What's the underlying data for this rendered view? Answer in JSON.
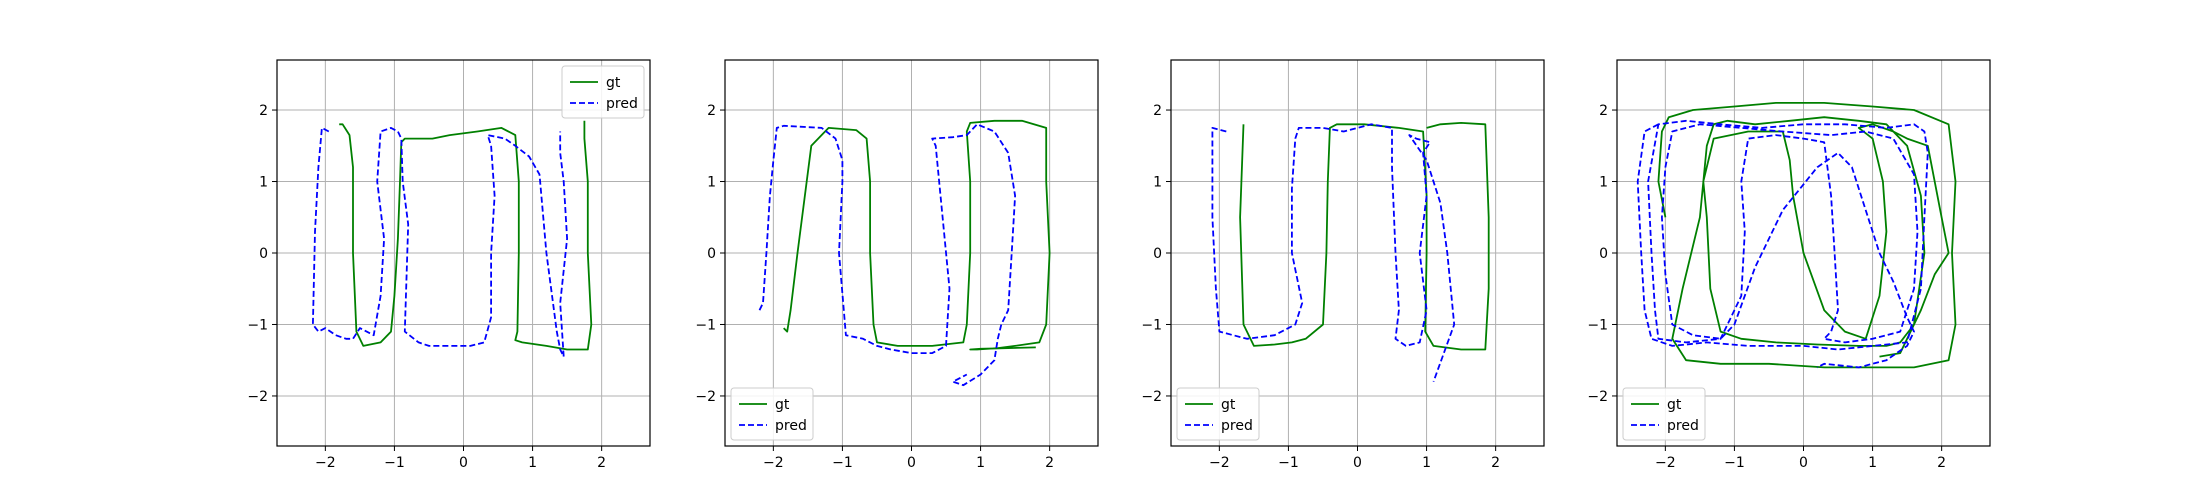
{
  "chart_data": [
    {
      "type": "line",
      "title": "",
      "xlabel": "",
      "ylabel": "",
      "xlim": [
        -2.7,
        2.7
      ],
      "ylim": [
        -2.7,
        2.7
      ],
      "xticks": [
        "−2",
        "−1",
        "0",
        "1",
        "2"
      ],
      "yticks": [
        "−2",
        "−1",
        "0",
        "1",
        "2"
      ],
      "grid": true,
      "legend_position": "upper right",
      "series": [
        {
          "name": "gt",
          "style": "solid",
          "color": "#008000",
          "x": [
            -1.8,
            -1.75,
            -1.65,
            -1.6,
            -1.6,
            -1.55,
            -1.45,
            -1.2,
            -1.05,
            -1.0,
            -0.95,
            -0.92,
            -0.9,
            -0.85,
            -0.75,
            -0.45,
            -0.2,
            0.2,
            0.55,
            0.75,
            0.8,
            0.8,
            0.78,
            0.75,
            0.85,
            1.2,
            1.5,
            1.8,
            1.85,
            1.8,
            1.8,
            1.75,
            1.75
          ],
          "y": [
            1.8,
            1.8,
            1.65,
            1.2,
            0.0,
            -1.1,
            -1.3,
            -1.25,
            -1.1,
            -0.6,
            0.2,
            1.0,
            1.55,
            1.6,
            1.6,
            1.6,
            1.65,
            1.7,
            1.75,
            1.65,
            1.0,
            0.0,
            -1.1,
            -1.22,
            -1.25,
            -1.3,
            -1.35,
            -1.35,
            -1.0,
            0.0,
            1.0,
            1.6,
            1.85
          ]
        },
        {
          "name": "pred",
          "style": "dashed",
          "color": "#0000ff",
          "x": [
            -1.95,
            -2.05,
            -2.1,
            -2.15,
            -2.18,
            -2.1,
            -2.0,
            -1.85,
            -1.7,
            -1.6,
            -1.5,
            -1.3,
            -1.2,
            -1.15,
            -1.25,
            -1.2,
            -1.05,
            -0.95,
            -0.9,
            -0.88,
            -0.8,
            -0.85,
            -0.65,
            -0.5,
            -0.2,
            0.1,
            0.3,
            0.4,
            0.4,
            0.45,
            0.4,
            0.35,
            0.6,
            0.75,
            0.95,
            1.1,
            1.2,
            1.35,
            1.4,
            1.45,
            1.4,
            1.5,
            1.45,
            1.4,
            1.4
          ],
          "y": [
            1.7,
            1.75,
            1.2,
            0.3,
            -1.0,
            -1.1,
            -1.05,
            -1.15,
            -1.2,
            -1.2,
            -1.05,
            -1.15,
            -0.6,
            0.2,
            1.0,
            1.7,
            1.75,
            1.7,
            1.6,
            1.0,
            0.4,
            -1.1,
            -1.25,
            -1.3,
            -1.3,
            -1.3,
            -1.25,
            -0.9,
            0.0,
            0.8,
            1.5,
            1.65,
            1.6,
            1.5,
            1.35,
            1.1,
            0.0,
            -1.1,
            -1.35,
            -1.45,
            -0.7,
            0.2,
            1.0,
            1.4,
            1.7
          ]
        }
      ]
    },
    {
      "type": "line",
      "title": "",
      "xlabel": "",
      "ylabel": "",
      "xlim": [
        -2.7,
        2.7
      ],
      "ylim": [
        -2.7,
        2.7
      ],
      "xticks": [
        "−2",
        "−1",
        "0",
        "1",
        "2"
      ],
      "yticks": [
        "−2",
        "−1",
        "0",
        "1",
        "2"
      ],
      "grid": true,
      "legend_position": "lower left",
      "series": [
        {
          "name": "gt",
          "style": "solid",
          "color": "#008000",
          "x": [
            -1.85,
            -1.8,
            -1.75,
            -1.65,
            -1.45,
            -1.2,
            -0.8,
            -0.65,
            -0.6,
            -0.6,
            -0.55,
            -0.5,
            -0.2,
            0.3,
            0.75,
            0.8,
            0.85,
            0.85,
            0.8,
            0.85,
            1.2,
            1.6,
            1.95,
            1.95,
            2.0,
            1.95,
            1.85,
            1.5,
            1.25,
            0.95,
            0.85,
            1.0,
            1.4,
            1.8
          ],
          "y": [
            -1.05,
            -1.1,
            -0.8,
            0.0,
            1.5,
            1.75,
            1.72,
            1.6,
            1.0,
            0.0,
            -1.0,
            -1.25,
            -1.3,
            -1.3,
            -1.25,
            -1.0,
            0.0,
            1.0,
            1.7,
            1.82,
            1.85,
            1.85,
            1.75,
            1.0,
            0.0,
            -1.0,
            -1.25,
            -1.3,
            -1.33,
            -1.35,
            -1.35,
            -1.34,
            -1.33,
            -1.32
          ]
        },
        {
          "name": "pred",
          "style": "dashed",
          "color": "#0000ff",
          "x": [
            -2.2,
            -2.15,
            -2.1,
            -2.05,
            -2.0,
            -1.95,
            -1.85,
            -1.3,
            -1.1,
            -1.0,
            -1.0,
            -1.05,
            -0.95,
            -0.7,
            -0.5,
            -0.3,
            0.0,
            0.3,
            0.5,
            0.55,
            0.45,
            0.35,
            0.3,
            0.6,
            0.8,
            0.95,
            1.2,
            1.4,
            1.5,
            1.45,
            1.4,
            1.3,
            1.25,
            1.2,
            1.0,
            0.75,
            0.6,
            0.8
          ],
          "y": [
            -0.8,
            -0.7,
            0.0,
            0.8,
            1.3,
            1.75,
            1.78,
            1.75,
            1.6,
            1.3,
            1.0,
            0.0,
            -1.15,
            -1.2,
            -1.3,
            -1.35,
            -1.4,
            -1.4,
            -1.3,
            -0.5,
            0.5,
            1.5,
            1.6,
            1.62,
            1.65,
            1.8,
            1.7,
            1.4,
            0.8,
            0.0,
            -0.8,
            -1.0,
            -1.2,
            -1.5,
            -1.7,
            -1.85,
            -1.8,
            -1.7
          ]
        }
      ]
    },
    {
      "type": "line",
      "title": "",
      "xlabel": "",
      "ylabel": "",
      "xlim": [
        -2.7,
        2.7
      ],
      "ylim": [
        -2.7,
        2.7
      ],
      "xticks": [
        "−2",
        "−1",
        "0",
        "1",
        "2"
      ],
      "yticks": [
        "−2",
        "−1",
        "0",
        "1",
        "2"
      ],
      "grid": true,
      "legend_position": "lower left",
      "series": [
        {
          "name": "gt",
          "style": "solid",
          "color": "#008000",
          "x": [
            -1.65,
            -1.7,
            -1.65,
            -1.5,
            -1.2,
            -0.95,
            -0.75,
            -0.5,
            -0.45,
            -0.43,
            -0.4,
            -0.3,
            0.1,
            0.6,
            0.95,
            1.0,
            1.0,
            0.98,
            1.1,
            1.5,
            1.85,
            1.9,
            1.9,
            1.85,
            1.5,
            1.2,
            1.0
          ],
          "y": [
            1.8,
            0.5,
            -1.0,
            -1.3,
            -1.28,
            -1.25,
            -1.2,
            -1.0,
            0.0,
            1.0,
            1.75,
            1.8,
            1.8,
            1.75,
            1.7,
            0.8,
            0.0,
            -1.1,
            -1.3,
            -1.35,
            -1.35,
            -0.5,
            0.5,
            1.8,
            1.82,
            1.8,
            1.75
          ]
        },
        {
          "name": "pred",
          "style": "dashed",
          "color": "#0000ff",
          "x": [
            -1.9,
            -2.1,
            -2.1,
            -2.05,
            -2.0,
            -1.6,
            -1.2,
            -0.9,
            -0.8,
            -0.95,
            -0.95,
            -0.9,
            -0.85,
            -0.5,
            -0.2,
            0.2,
            0.5,
            0.5,
            0.55,
            0.6,
            0.55,
            0.7,
            0.9,
            1.0,
            0.9,
            1.0,
            0.95,
            1.05,
            0.85,
            0.75,
            1.0,
            1.2,
            1.3,
            1.4,
            1.1
          ],
          "y": [
            1.7,
            1.75,
            0.5,
            -0.5,
            -1.1,
            -1.2,
            -1.15,
            -1.0,
            -0.7,
            0.0,
            0.9,
            1.6,
            1.75,
            1.75,
            1.7,
            1.8,
            1.75,
            1.2,
            0.0,
            -0.8,
            -1.2,
            -1.3,
            -1.25,
            -0.8,
            0.0,
            0.8,
            1.4,
            1.55,
            1.6,
            1.65,
            1.3,
            0.7,
            0.0,
            -1.0,
            -1.8
          ]
        }
      ]
    },
    {
      "type": "line",
      "title": "",
      "xlabel": "",
      "ylabel": "",
      "xlim": [
        -2.7,
        2.7
      ],
      "ylim": [
        -2.7,
        2.7
      ],
      "xticks": [
        "−2",
        "−1",
        "0",
        "1",
        "2"
      ],
      "yticks": [
        "−2",
        "−1",
        "0",
        "1",
        "2"
      ],
      "grid": true,
      "legend_position": "lower left",
      "series": [
        {
          "name": "gt",
          "style": "solid",
          "color": "#008000",
          "x": [
            -2.0,
            -2.1,
            -2.05,
            -1.95,
            -1.6,
            -1.0,
            -0.4,
            0.3,
            1.0,
            1.6,
            2.1,
            2.2,
            2.15,
            2.2,
            2.1,
            1.6,
            1.0,
            0.3,
            -0.5,
            -1.2,
            -1.7,
            -1.9,
            -1.75,
            -1.5,
            -1.4,
            -1.3,
            -1.1,
            -0.7,
            -0.2,
            0.3,
            0.8,
            1.2,
            1.5,
            1.7,
            1.75,
            1.6,
            1.4,
            1.2,
            0.8,
            0.2,
            -0.4,
            -0.9,
            -1.2,
            -1.35,
            -1.4,
            -1.45,
            -1.3,
            -0.8,
            -0.3,
            -0.2,
            -0.15,
            0.0,
            0.3,
            0.6,
            0.9,
            1.1,
            1.2,
            1.15,
            1.0,
            0.8,
            1.0,
            1.3,
            1.5,
            1.8,
            2.0,
            2.1,
            1.9,
            1.7,
            1.4,
            1.1
          ],
          "y": [
            0.5,
            1.0,
            1.7,
            1.9,
            2.0,
            2.05,
            2.1,
            2.1,
            2.05,
            2.0,
            1.8,
            1.0,
            0.0,
            -1.0,
            -1.5,
            -1.6,
            -1.6,
            -1.6,
            -1.55,
            -1.55,
            -1.5,
            -1.2,
            -0.5,
            0.5,
            1.5,
            1.8,
            1.85,
            1.8,
            1.85,
            1.9,
            1.85,
            1.8,
            1.5,
            0.8,
            0.0,
            -1.0,
            -1.25,
            -1.3,
            -1.3,
            -1.28,
            -1.25,
            -1.2,
            -1.1,
            -0.5,
            0.5,
            1.0,
            1.6,
            1.7,
            1.7,
            1.3,
            0.8,
            0.0,
            -0.8,
            -1.1,
            -1.2,
            -0.6,
            0.3,
            1.0,
            1.6,
            1.75,
            1.8,
            1.7,
            1.6,
            1.5,
            0.5,
            0.0,
            -0.3,
            -0.8,
            -1.4,
            -1.45
          ]
        },
        {
          "name": "pred",
          "style": "dashed",
          "color": "#0000ff",
          "x": [
            -2.1,
            -2.3,
            -2.4,
            -2.35,
            -2.3,
            -2.2,
            -1.9,
            -1.4,
            -0.8,
            -0.4,
            0.0,
            0.5,
            1.0,
            1.5,
            1.7,
            1.75,
            1.8,
            1.75,
            1.6,
            1.2,
            0.6,
            0.0,
            -0.6,
            -1.2,
            -1.7,
            -2.1,
            -2.25,
            -2.2,
            -2.15,
            -2.1,
            -1.7,
            -1.2,
            -0.9,
            -0.85,
            -0.9,
            -0.8,
            -0.4,
            0.0,
            0.3,
            0.4,
            0.45,
            0.5,
            0.4,
            0.3,
            0.6,
            1.0,
            1.4,
            1.6,
            1.65,
            1.6,
            1.3,
            0.9,
            0.4,
            -0.3,
            -0.9,
            -1.5,
            -1.9,
            -2.0,
            -2.05,
            -2.0,
            -1.9,
            -1.6,
            -1.2,
            -1.0,
            -0.7,
            -0.3,
            0.2,
            0.5,
            0.7,
            0.9,
            1.1,
            1.3,
            1.5,
            1.6,
            1.5,
            1.2,
            0.8,
            0.3,
            0.2
          ],
          "y": [
            1.8,
            1.7,
            1.0,
            0.0,
            -0.8,
            -1.2,
            -1.3,
            -1.25,
            -1.3,
            -1.3,
            -1.3,
            -1.35,
            -1.3,
            -1.25,
            -0.5,
            0.5,
            1.4,
            1.7,
            1.8,
            1.75,
            1.8,
            1.8,
            1.75,
            1.8,
            1.85,
            1.8,
            1.0,
            0.0,
            -0.8,
            -1.2,
            -1.25,
            -1.2,
            -0.6,
            0.3,
            1.0,
            1.6,
            1.65,
            1.6,
            1.55,
            0.8,
            0.0,
            -0.8,
            -1.1,
            -1.2,
            -1.25,
            -1.2,
            -1.1,
            -0.5,
            0.3,
            1.1,
            1.6,
            1.7,
            1.65,
            1.7,
            1.75,
            1.8,
            1.7,
            1.2,
            0.5,
            -0.3,
            -1.0,
            -1.15,
            -1.2,
            -1.0,
            -0.2,
            0.6,
            1.2,
            1.4,
            1.2,
            0.6,
            0.0,
            -0.4,
            -0.9,
            -1.1,
            -1.3,
            -1.5,
            -1.6,
            -1.55,
            -1.6
          ]
        }
      ]
    }
  ]
}
